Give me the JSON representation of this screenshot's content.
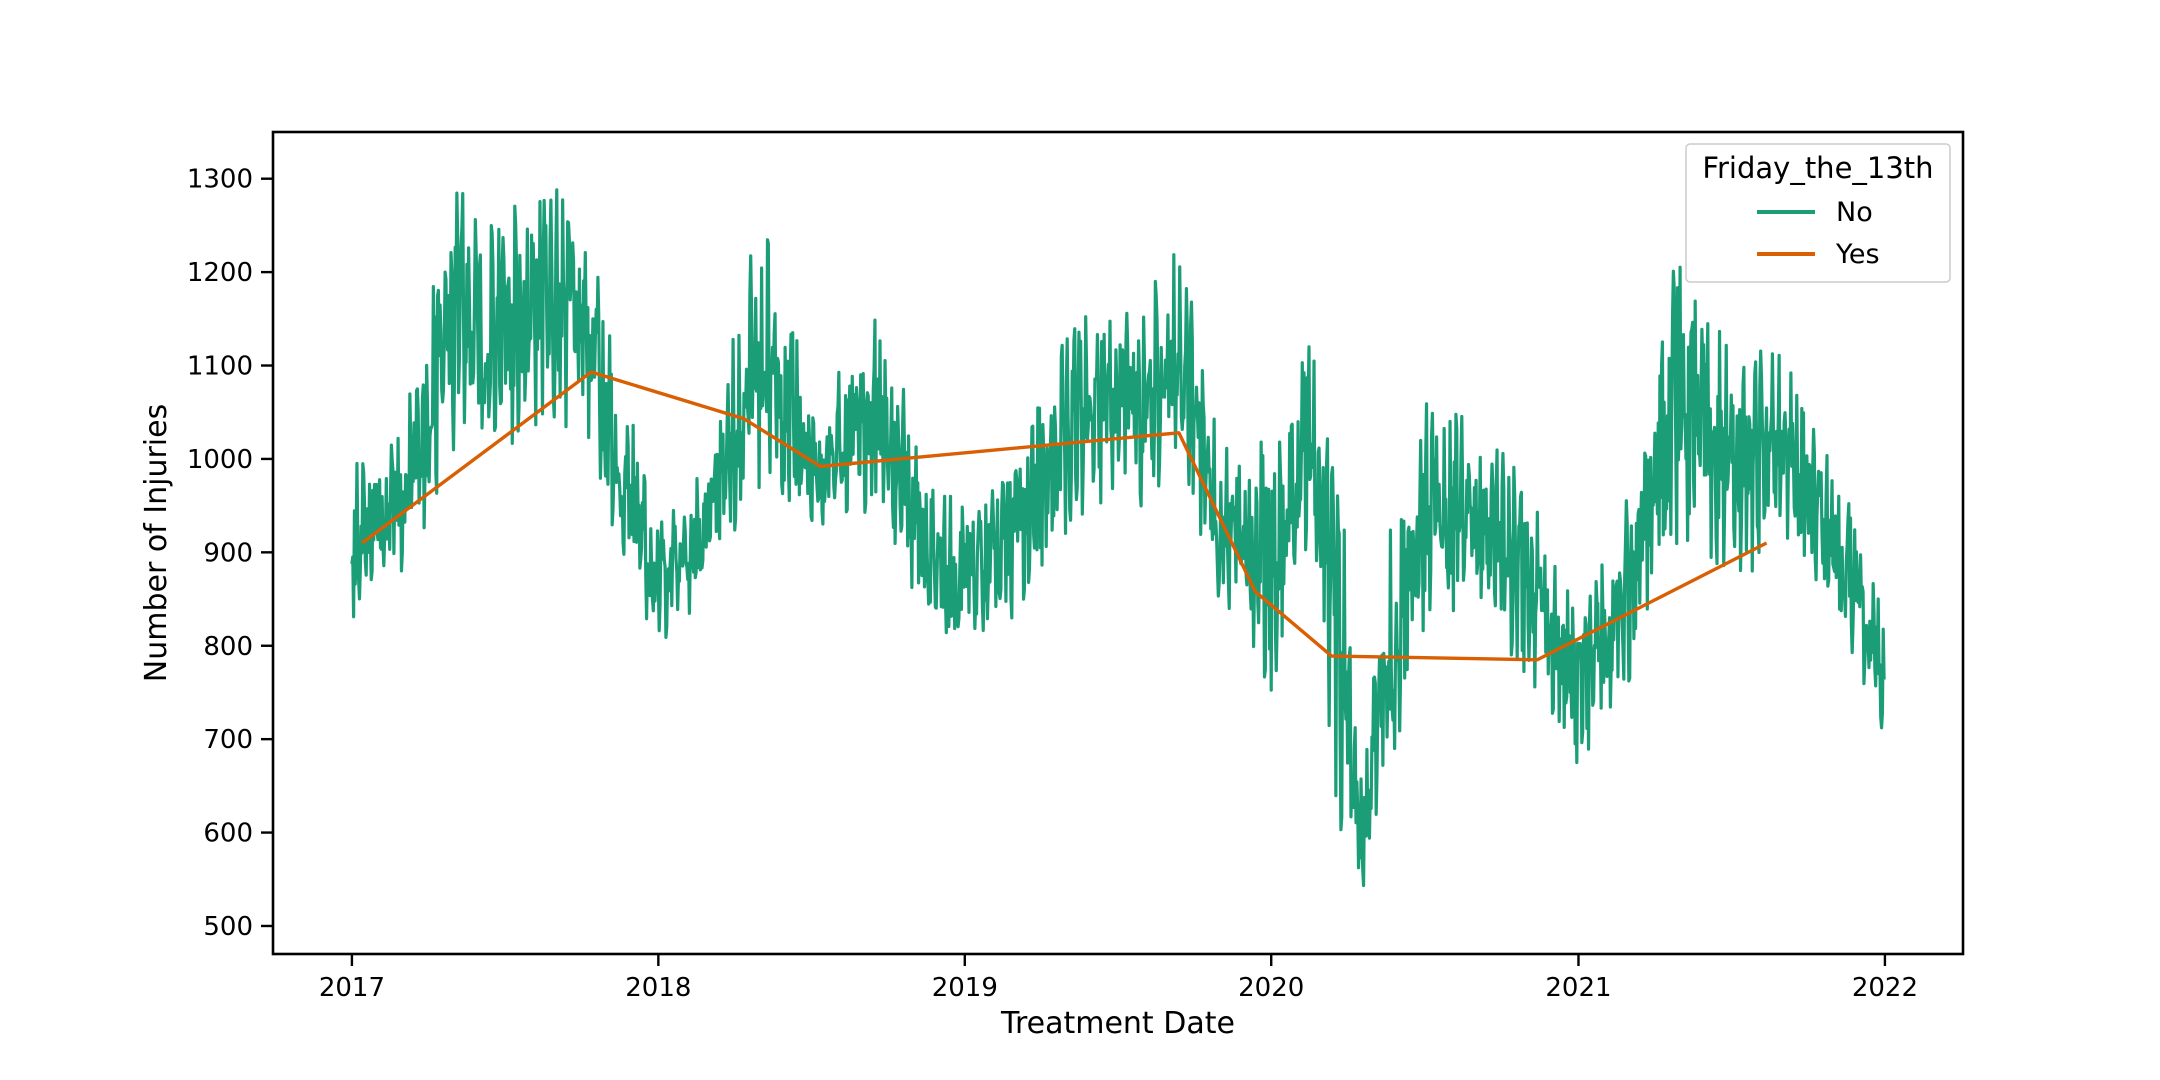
{
  "chart_data": {
    "type": "line",
    "title": "",
    "xlabel": "Treatment Date",
    "ylabel": "Number of Injuries",
    "x_ticks": [
      "2017",
      "2018",
      "2019",
      "2020",
      "2021",
      "2022"
    ],
    "y_ticks": [
      500,
      600,
      700,
      800,
      900,
      1000,
      1100,
      1200,
      1300
    ],
    "xlim": [
      "2016-09-29",
      "2022-04-04"
    ],
    "ylim": [
      470,
      1350
    ],
    "grid": false,
    "legend": {
      "title": "Friday_the_13th",
      "placement": "top-right",
      "entries": [
        "No",
        "Yes"
      ]
    },
    "series": [
      {
        "name": "No",
        "color": "#1b9e77",
        "style": "daily, noisy",
        "envelope": [
          {
            "date": "2017-01-01",
            "min": 830,
            "max": 990
          },
          {
            "date": "2017-03-01",
            "min": 860,
            "max": 1040
          },
          {
            "date": "2017-05-01",
            "min": 1010,
            "max": 1290
          },
          {
            "date": "2017-07-01",
            "min": 1000,
            "max": 1260
          },
          {
            "date": "2017-09-01",
            "min": 1040,
            "max": 1310
          },
          {
            "date": "2017-10-15",
            "min": 1020,
            "max": 1230
          },
          {
            "date": "2017-11-15",
            "min": 880,
            "max": 1100
          },
          {
            "date": "2018-01-01",
            "min": 790,
            "max": 930
          },
          {
            "date": "2018-03-01",
            "min": 860,
            "max": 1000
          },
          {
            "date": "2018-05-01",
            "min": 950,
            "max": 1260
          },
          {
            "date": "2018-07-15",
            "min": 910,
            "max": 1070
          },
          {
            "date": "2018-09-15",
            "min": 950,
            "max": 1170
          },
          {
            "date": "2018-12-01",
            "min": 800,
            "max": 960
          },
          {
            "date": "2019-01-15",
            "min": 780,
            "max": 960
          },
          {
            "date": "2019-03-15",
            "min": 850,
            "max": 1030
          },
          {
            "date": "2019-05-15",
            "min": 940,
            "max": 1160
          },
          {
            "date": "2019-08-01",
            "min": 950,
            "max": 1170
          },
          {
            "date": "2019-09-15",
            "min": 1000,
            "max": 1230
          },
          {
            "date": "2019-11-01",
            "min": 840,
            "max": 1010
          },
          {
            "date": "2020-01-01",
            "min": 750,
            "max": 1020
          },
          {
            "date": "2020-02-15",
            "min": 900,
            "max": 1130
          },
          {
            "date": "2020-03-20",
            "min": 620,
            "max": 1050
          },
          {
            "date": "2020-04-15",
            "min": 510,
            "max": 640
          },
          {
            "date": "2020-05-15",
            "min": 640,
            "max": 900
          },
          {
            "date": "2020-07-01",
            "min": 820,
            "max": 1060
          },
          {
            "date": "2020-09-01",
            "min": 840,
            "max": 1040
          },
          {
            "date": "2020-11-15",
            "min": 750,
            "max": 960
          },
          {
            "date": "2021-01-01",
            "min": 660,
            "max": 820
          },
          {
            "date": "2021-03-01",
            "min": 760,
            "max": 960
          },
          {
            "date": "2021-05-01",
            "min": 900,
            "max": 1240
          },
          {
            "date": "2021-07-15",
            "min": 880,
            "max": 1120
          },
          {
            "date": "2021-09-01",
            "min": 880,
            "max": 1110
          },
          {
            "date": "2021-11-01",
            "min": 840,
            "max": 1000
          },
          {
            "date": "2021-12-31",
            "min": 700,
            "max": 840
          }
        ]
      },
      {
        "name": "Yes",
        "color": "#d95f02",
        "points": [
          {
            "date": "2017-01-13",
            "value": 910
          },
          {
            "date": "2017-10-13",
            "value": 1093
          },
          {
            "date": "2018-04-13",
            "value": 1043
          },
          {
            "date": "2018-07-13",
            "value": 992
          },
          {
            "date": "2019-09-13",
            "value": 1028
          },
          {
            "date": "2019-12-13",
            "value": 858
          },
          {
            "date": "2020-03-13",
            "value": 789
          },
          {
            "date": "2020-11-13",
            "value": 785
          },
          {
            "date": "2021-08-13",
            "value": 910
          }
        ]
      }
    ]
  }
}
